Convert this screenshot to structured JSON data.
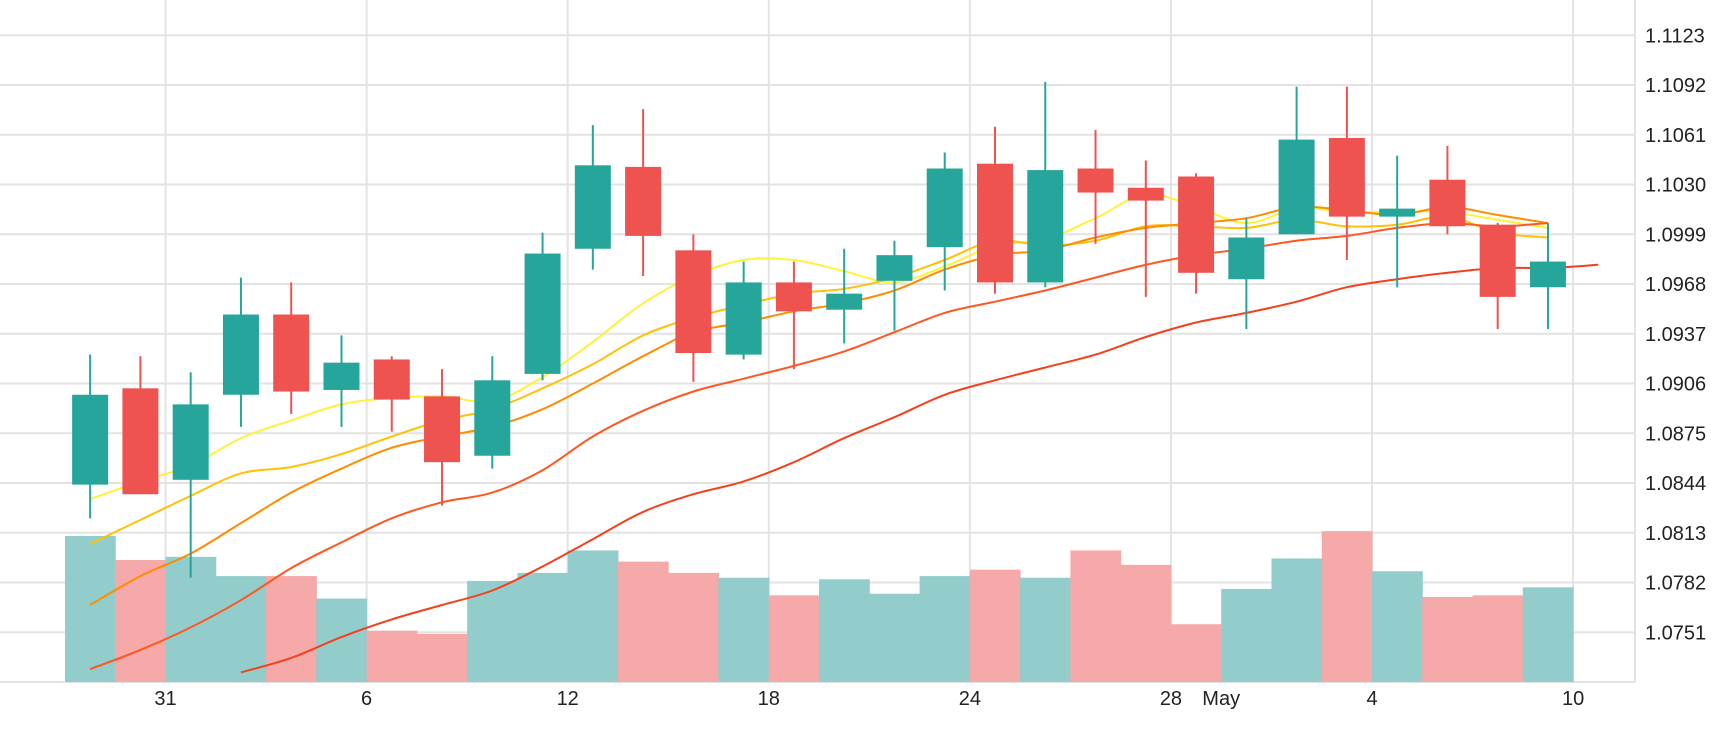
{
  "colors": {
    "up": "#26a69a",
    "down": "#ef5350",
    "vol_up": "#92cdcc",
    "vol_down": "#f5a9a8",
    "grid": "#e3e3e3",
    "ma_colors": [
      "#fff23a",
      "#ffc107",
      "#ff8c00",
      "#ff5722",
      "#f4401c"
    ]
  },
  "chart_data": {
    "type": "candlestick",
    "title": "",
    "xlabel": "",
    "ylabel": "",
    "grid": true,
    "y_axis_position": "right",
    "y_range": [
      1.072,
      1.1145
    ],
    "y_ticks": [
      "1.1123",
      "1.1092",
      "1.1061",
      "1.1030",
      "1.0999",
      "1.0968",
      "1.0937",
      "1.0906",
      "1.0875",
      "1.0844",
      "1.0813",
      "1.0782",
      "1.0751"
    ],
    "x_tick_labels": [
      {
        "label": "31",
        "index": 1.5
      },
      {
        "label": "6",
        "index": 5.5
      },
      {
        "label": "12",
        "index": 9.5
      },
      {
        "label": "18",
        "index": 13.5
      },
      {
        "label": "24",
        "index": 17.5
      },
      {
        "label": "28",
        "index": 21.5
      },
      {
        "label": "May",
        "index": 22.5
      },
      {
        "label": "4",
        "index": 25.5
      },
      {
        "label": "10",
        "index": 29.5
      }
    ],
    "candles": [
      {
        "open": 1.0843,
        "high": 1.0924,
        "low": 1.0822,
        "close": 1.0899
      },
      {
        "open": 1.0903,
        "high": 1.0923,
        "low": 1.0838,
        "close": 1.0837
      },
      {
        "open": 1.0846,
        "high": 1.0913,
        "low": 1.0785,
        "close": 1.0893
      },
      {
        "open": 1.0899,
        "high": 1.0972,
        "low": 1.0879,
        "close": 1.0949
      },
      {
        "open": 1.0949,
        "high": 1.0969,
        "low": 1.0887,
        "close": 1.0901
      },
      {
        "open": 1.0902,
        "high": 1.0936,
        "low": 1.0879,
        "close": 1.0919
      },
      {
        "open": 1.0921,
        "high": 1.0923,
        "low": 1.0876,
        "close": 1.0896
      },
      {
        "open": 1.0898,
        "high": 1.0915,
        "low": 1.083,
        "close": 1.0857
      },
      {
        "open": 1.0861,
        "high": 1.0923,
        "low": 1.0853,
        "close": 1.0908
      },
      {
        "open": 1.0912,
        "high": 1.1,
        "low": 1.0908,
        "close": 1.0987
      },
      {
        "open": 1.099,
        "high": 1.1067,
        "low": 1.0977,
        "close": 1.1042
      },
      {
        "open": 1.1041,
        "high": 1.1077,
        "low": 1.0973,
        "close": 1.0998
      },
      {
        "open": 1.0989,
        "high": 1.0999,
        "low": 1.0907,
        "close": 1.0925
      },
      {
        "open": 1.0924,
        "high": 1.0982,
        "low": 1.0921,
        "close": 1.0969
      },
      {
        "open": 1.0969,
        "high": 1.0982,
        "low": 1.0915,
        "close": 1.0951
      },
      {
        "open": 1.0952,
        "high": 1.099,
        "low": 1.0931,
        "close": 1.0962
      },
      {
        "open": 1.097,
        "high": 1.0995,
        "low": 1.0939,
        "close": 1.0986
      },
      {
        "open": 1.0991,
        "high": 1.105,
        "low": 1.0964,
        "close": 1.104
      },
      {
        "open": 1.1043,
        "high": 1.1066,
        "low": 1.0962,
        "close": 1.0969
      },
      {
        "open": 1.0969,
        "high": 1.1094,
        "low": 1.0966,
        "close": 1.1039
      },
      {
        "open": 1.104,
        "high": 1.1064,
        "low": 1.0993,
        "close": 1.1025
      },
      {
        "open": 1.1028,
        "high": 1.1045,
        "low": 1.096,
        "close": 1.102
      },
      {
        "open": 1.1035,
        "high": 1.1037,
        "low": 1.0962,
        "close": 1.0975
      },
      {
        "open": 1.0971,
        "high": 1.1009,
        "low": 1.094,
        "close": 1.0997
      },
      {
        "open": 1.0999,
        "high": 1.1091,
        "low": 1.0999,
        "close": 1.1058
      },
      {
        "open": 1.1059,
        "high": 1.1091,
        "low": 1.0983,
        "close": 1.101
      },
      {
        "open": 1.101,
        "high": 1.1048,
        "low": 1.0966,
        "close": 1.1015
      },
      {
        "open": 1.1033,
        "high": 1.1054,
        "low": 1.0999,
        "close": 1.1004
      },
      {
        "open": 1.1005,
        "high": 1.1006,
        "low": 1.094,
        "close": 1.096
      },
      {
        "open": 1.0966,
        "high": 1.1006,
        "low": 1.094,
        "close": 1.0982
      }
    ],
    "volumes": [
      1.0811,
      1.0796,
      1.0798,
      1.0786,
      1.0786,
      1.0772,
      1.0752,
      1.075,
      1.0783,
      1.0788,
      1.0802,
      1.0795,
      1.0788,
      1.0785,
      1.0774,
      1.0784,
      1.0775,
      1.0786,
      1.079,
      1.0785,
      1.0802,
      1.0793,
      1.0756,
      1.0778,
      1.0797,
      1.0814,
      1.0789,
      1.0773,
      1.0774,
      1.0779
    ],
    "moving_averages": [
      {
        "start": 0,
        "values": [
          1.0834,
          1.0845,
          1.0855,
          1.0872,
          1.0883,
          1.0893,
          1.0897,
          1.0898,
          1.0895,
          1.091,
          1.0932,
          1.0956,
          1.0973,
          1.0983,
          1.0983,
          1.0976,
          1.0969,
          1.0979,
          1.0992,
          1.0996,
          1.1009,
          1.1024,
          1.1016,
          1.1006,
          1.1015,
          1.1013,
          1.1013,
          1.1013,
          1.1008,
          1.1003
        ]
      },
      {
        "start": 0,
        "values": [
          1.0806,
          1.0821,
          1.0836,
          1.085,
          1.0854,
          1.0862,
          1.0873,
          1.0883,
          1.089,
          1.0903,
          1.0918,
          1.0936,
          1.0947,
          1.0955,
          1.0962,
          1.0965,
          1.0972,
          1.0983,
          1.0995,
          1.0992,
          1.0995,
          1.1004,
          1.1004,
          1.1003,
          1.1008,
          1.1004,
          1.1005,
          1.101,
          1.1,
          1.0997
        ]
      },
      {
        "start": 0,
        "values": [
          1.0768,
          1.0786,
          1.08,
          1.0819,
          1.0838,
          1.0853,
          1.0866,
          1.0873,
          1.0879,
          1.089,
          1.0906,
          1.0923,
          1.0938,
          1.0944,
          1.0951,
          1.0956,
          1.0964,
          1.0977,
          1.0986,
          1.0989,
          1.0997,
          1.1003,
          1.1006,
          1.1009,
          1.1016,
          1.1014,
          1.1011,
          1.1016,
          1.1011,
          1.1006
        ]
      },
      {
        "start": 0,
        "values": [
          1.0728,
          1.074,
          1.0754,
          1.0771,
          1.0791,
          1.0807,
          1.0822,
          1.0832,
          1.0838,
          1.0852,
          1.0873,
          1.0889,
          1.0901,
          1.0909,
          1.0917,
          1.0926,
          1.0938,
          1.095,
          1.0957,
          1.0964,
          1.0972,
          1.098,
          1.0986,
          1.099,
          1.0995,
          1.0998,
          1.1003,
          1.1006,
          1.1004,
          1.1006
        ]
      },
      {
        "start": 3,
        "values": [
          1.0726,
          1.0735,
          1.0748,
          1.0759,
          1.0768,
          1.0777,
          1.0792,
          1.0809,
          1.0826,
          1.0837,
          1.0845,
          1.0857,
          1.0872,
          1.0885,
          1.0899,
          1.0908,
          1.0916,
          1.0924,
          1.0935,
          1.0944,
          1.095,
          1.0957,
          1.0966,
          1.0971,
          1.0975,
          1.0978,
          1.0978,
          1.098
        ]
      }
    ]
  }
}
